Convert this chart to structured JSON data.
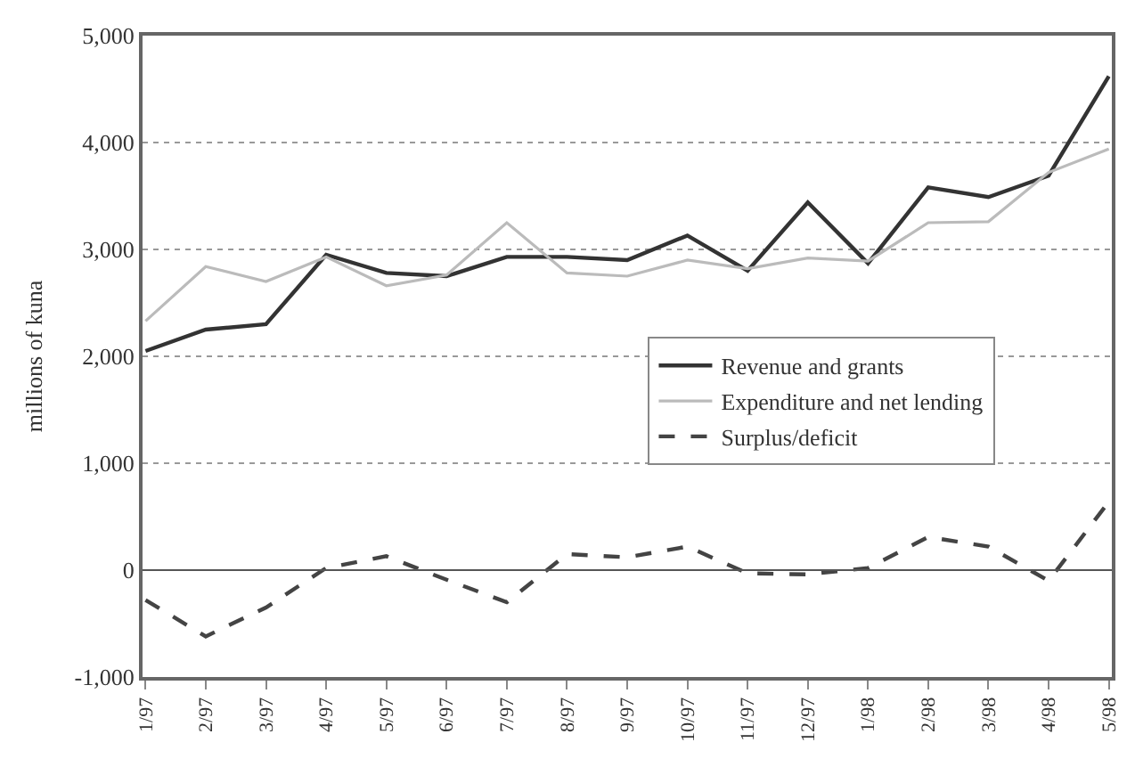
{
  "chart_data": {
    "type": "line",
    "ylabel": "millions of kuna",
    "categories": [
      "1/97",
      "2/97",
      "3/97",
      "4/97",
      "5/97",
      "6/97",
      "7/97",
      "8/97",
      "9/97",
      "10/97",
      "11/97",
      "12/97",
      "1/98",
      "2/98",
      "3/98",
      "4/98",
      "5/98"
    ],
    "series": [
      {
        "name": "Revenue and grants",
        "color": "#333333",
        "line_style": "solid",
        "values": [
          2050,
          2250,
          2300,
          2950,
          2780,
          2750,
          2930,
          2930,
          2900,
          3130,
          2800,
          3440,
          2870,
          3580,
          3490,
          3690,
          4620
        ]
      },
      {
        "name": "Expenditure and net lending",
        "color": "#bbbbbb",
        "line_style": "solid",
        "values": [
          2330,
          2840,
          2700,
          2930,
          2660,
          2760,
          3250,
          2780,
          2750,
          2900,
          2820,
          2920,
          2890,
          3250,
          3260,
          3720,
          3940
        ]
      },
      {
        "name": "Surplus/deficit",
        "color": "#444444",
        "line_style": "dashed",
        "values": [
          -280,
          -620,
          -350,
          20,
          130,
          -90,
          -300,
          150,
          120,
          220,
          -30,
          -40,
          20,
          310,
          220,
          -100,
          640
        ]
      }
    ],
    "ylim": [
      -1000,
      5000
    ],
    "yticks": [
      {
        "value": -1000,
        "label": "-1,000"
      },
      0,
      {
        "value": 1000,
        "label": "1,000"
      },
      {
        "value": 2000,
        "label": "2,000"
      },
      {
        "value": 3000,
        "label": "3,000"
      },
      {
        "value": 4000,
        "label": "4,000"
      },
      {
        "value": 5000,
        "label": "5,000"
      }
    ],
    "ref_lines": [
      {
        "axis": "y",
        "value": 0,
        "color": "#555555",
        "line_style": "solid"
      }
    ],
    "grid": "y",
    "legend": "right",
    "marker": "none"
  }
}
